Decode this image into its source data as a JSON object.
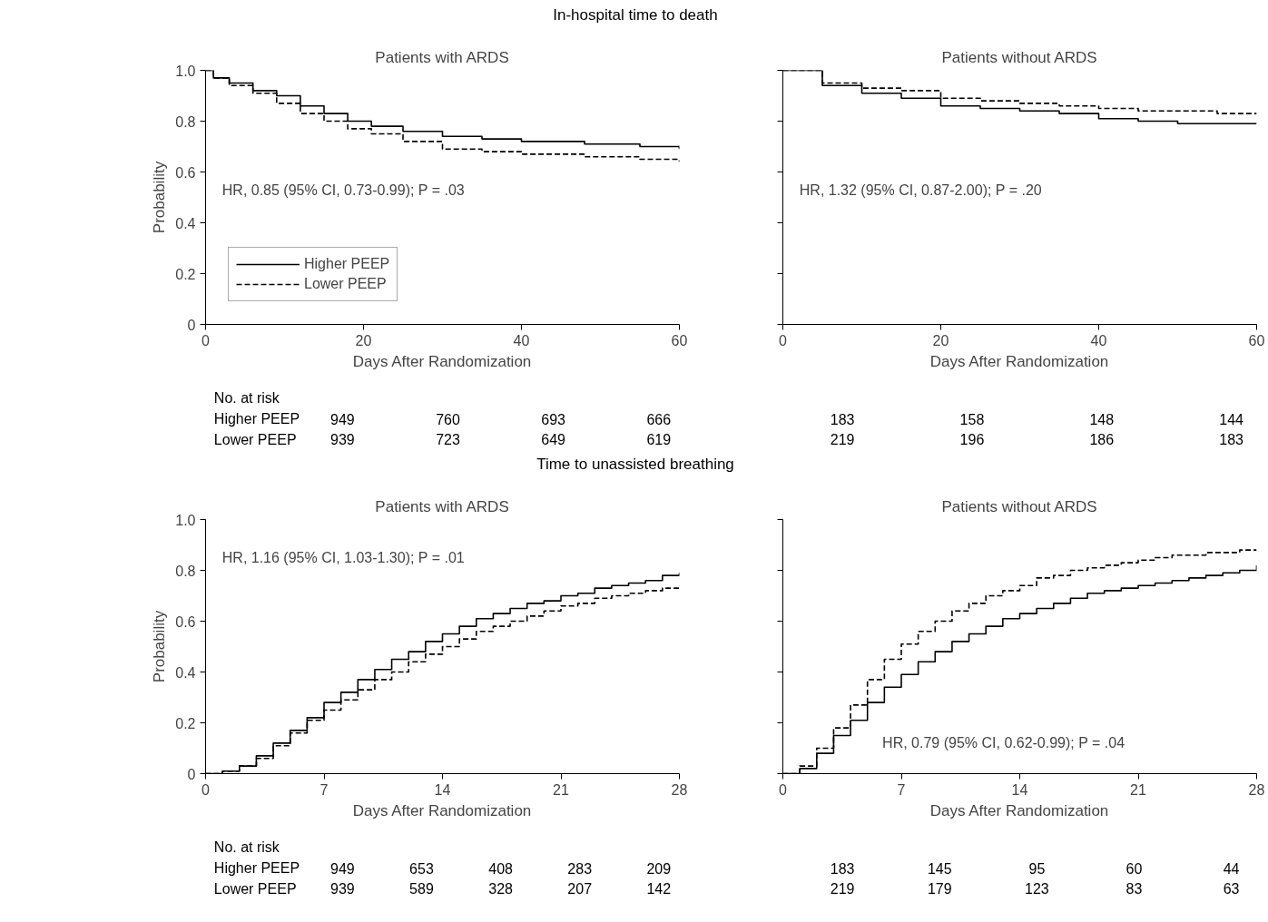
{
  "chart_data": [
    {
      "type": "step",
      "title": "In-hospital time to death",
      "subtitle": "Patients with ARDS",
      "xlabel": "Days After Randomization",
      "ylabel": "Probability",
      "xlim": [
        0,
        60
      ],
      "ylim": [
        0,
        1
      ],
      "xticks": [
        0,
        20,
        40,
        60
      ],
      "yticks": [
        0,
        0.2,
        0.4,
        0.6,
        0.8,
        {
          "value": 1,
          "label": "1.0"
        }
      ],
      "grid": false,
      "legend": "bottom left",
      "x": [
        0,
        1,
        3,
        6,
        9,
        12,
        15,
        18,
        21,
        25,
        30,
        35,
        40,
        48,
        55,
        60
      ],
      "series": [
        {
          "name": "Higher PEEP",
          "color": "#000000",
          "line_style": "solid",
          "values": [
            1.0,
            0.97,
            0.95,
            0.92,
            0.9,
            0.86,
            0.83,
            0.8,
            0.78,
            0.76,
            0.74,
            0.73,
            0.72,
            0.71,
            0.7,
            0.69
          ]
        },
        {
          "name": "Lower PEEP",
          "color": "#000000",
          "line_style": "dashed",
          "values": [
            1.0,
            0.97,
            0.94,
            0.91,
            0.87,
            0.83,
            0.8,
            0.77,
            0.75,
            0.72,
            0.69,
            0.68,
            0.67,
            0.66,
            0.65,
            0.64
          ]
        }
      ],
      "annotations": [
        "HR, 0.85 (95% CI, 0.73-0.99); P = .03",
        "No. at risk",
        "Higher PEEP",
        "Lower PEEP",
        "949",
        "760",
        "693",
        "666",
        "939",
        "723",
        "649",
        "619"
      ]
    },
    {
      "type": "step",
      "subtitle": "Patients without ARDS",
      "xlabel": "Days After Randomization",
      "xlim": [
        0,
        60
      ],
      "ylim": [
        0,
        1
      ],
      "xticks": [
        0,
        20,
        40,
        60
      ],
      "yticks": [
        0,
        0.2,
        0.4,
        0.6,
        0.8,
        1
      ],
      "tick_labels": "x",
      "grid": false,
      "x": [
        0,
        5,
        10,
        15,
        20,
        25,
        30,
        35,
        40,
        45,
        50,
        55,
        60
      ],
      "series": [
        {
          "color": "#000000",
          "line_style": "solid",
          "values": [
            1.0,
            0.94,
            0.91,
            0.89,
            0.86,
            0.85,
            0.84,
            0.83,
            0.81,
            0.8,
            0.79,
            0.79,
            0.79
          ]
        },
        {
          "color": "#000000",
          "line_style": "dashed",
          "values": [
            1.0,
            0.95,
            0.93,
            0.92,
            0.89,
            0.88,
            0.87,
            0.86,
            0.85,
            0.84,
            0.84,
            0.83,
            0.83
          ]
        }
      ],
      "annotations": [
        "HR, 1.32 (95% CI, 0.87-2.00); P = .20",
        "183",
        "158",
        "148",
        "144",
        "219",
        "196",
        "186",
        "183"
      ]
    },
    {
      "type": "step",
      "title": "Time to unassisted breathing",
      "subtitle": "Patients with ARDS",
      "xlabel": "Days After Randomization",
      "ylabel": "Probability",
      "xlim": [
        0,
        28
      ],
      "ylim": [
        0,
        1
      ],
      "xticks": [
        0,
        7,
        14,
        21,
        28
      ],
      "yticks": [
        0,
        0.2,
        0.4,
        0.6,
        0.8,
        {
          "value": 1,
          "label": "1.0"
        }
      ],
      "grid": false,
      "x": [
        0,
        1,
        2,
        3,
        4,
        5,
        6,
        7,
        8,
        9,
        10,
        11,
        12,
        13,
        14,
        15,
        16,
        17,
        18,
        19,
        20,
        21,
        22,
        23,
        24,
        25,
        26,
        27,
        28
      ],
      "series": [
        {
          "color": "#000000",
          "line_style": "solid",
          "values": [
            0,
            0.01,
            0.03,
            0.07,
            0.12,
            0.17,
            0.22,
            0.28,
            0.32,
            0.37,
            0.41,
            0.45,
            0.48,
            0.52,
            0.55,
            0.58,
            0.61,
            0.63,
            0.65,
            0.67,
            0.68,
            0.7,
            0.71,
            0.73,
            0.74,
            0.75,
            0.76,
            0.78,
            0.79
          ]
        },
        {
          "color": "#000000",
          "line_style": "dashed",
          "values": [
            0,
            0.01,
            0.03,
            0.06,
            0.11,
            0.16,
            0.21,
            0.25,
            0.29,
            0.33,
            0.37,
            0.4,
            0.44,
            0.47,
            0.5,
            0.53,
            0.56,
            0.58,
            0.6,
            0.62,
            0.64,
            0.66,
            0.67,
            0.69,
            0.7,
            0.71,
            0.72,
            0.73,
            0.74
          ]
        }
      ],
      "annotations": [
        "HR, 1.16 (95% CI, 1.03-1.30); P = .01",
        "No. at risk",
        "Higher PEEP",
        "Lower PEEP",
        "949",
        "653",
        "408",
        "283",
        "209",
        "939",
        "589",
        "328",
        "207",
        "142"
      ]
    },
    {
      "type": "step",
      "subtitle": "Patients without ARDS",
      "xlabel": "Days After Randomization",
      "xlim": [
        0,
        28
      ],
      "ylim": [
        0,
        1
      ],
      "xticks": [
        0,
        7,
        14,
        21,
        28
      ],
      "yticks": [
        0,
        0.2,
        0.4,
        0.6,
        0.8,
        1
      ],
      "tick_labels": "x",
      "grid": false,
      "x": [
        0,
        1,
        2,
        3,
        4,
        5,
        6,
        7,
        8,
        9,
        10,
        11,
        12,
        13,
        14,
        15,
        16,
        17,
        18,
        19,
        20,
        21,
        22,
        23,
        24,
        25,
        26,
        27,
        28
      ],
      "series": [
        {
          "color": "#000000",
          "line_style": "solid",
          "values": [
            0,
            0.02,
            0.08,
            0.15,
            0.21,
            0.28,
            0.34,
            0.39,
            0.44,
            0.48,
            0.52,
            0.55,
            0.58,
            0.61,
            0.63,
            0.65,
            0.67,
            0.69,
            0.71,
            0.72,
            0.73,
            0.74,
            0.75,
            0.76,
            0.77,
            0.78,
            0.79,
            0.8,
            0.82
          ]
        },
        {
          "color": "#000000",
          "line_style": "dashed",
          "values": [
            0,
            0.03,
            0.1,
            0.18,
            0.27,
            0.37,
            0.45,
            0.51,
            0.56,
            0.6,
            0.64,
            0.67,
            0.7,
            0.72,
            0.74,
            0.77,
            0.78,
            0.8,
            0.81,
            0.82,
            0.83,
            0.84,
            0.85,
            0.86,
            0.86,
            0.87,
            0.87,
            0.88,
            0.88
          ]
        }
      ],
      "annotations": [
        "HR, 0.79 (95% CI, 0.62-0.99); P = .04",
        "183",
        "145",
        "95",
        "60",
        "44",
        "219",
        "179",
        "123",
        "83",
        "63"
      ]
    }
  ]
}
